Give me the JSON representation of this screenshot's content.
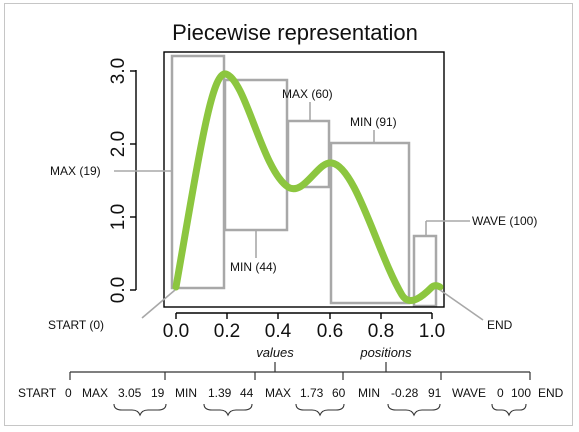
{
  "title": "Piecewise representation",
  "colors": {
    "curve": "#8cc63f",
    "box": "#a8a8a8",
    "axis": "#000000",
    "frame": "#c6c6c6"
  },
  "axes": {
    "x_ticks": [
      "0.0",
      "0.2",
      "0.4",
      "0.6",
      "0.8",
      "1.0"
    ],
    "y_ticks": [
      "0.0",
      "1.0",
      "2.0",
      "3.0"
    ],
    "xlim": [
      0.0,
      1.0
    ],
    "ylim": [
      0.0,
      3.0
    ]
  },
  "annotations": {
    "start": "START (0)",
    "max19": "MAX (19)",
    "min44": "MIN (44)",
    "max60": "MAX (60)",
    "min91": "MIN (91)",
    "wave100": "WAVE (100)",
    "end": "END"
  },
  "captions": {
    "values": "values",
    "positions": "positions"
  },
  "sequence": {
    "start": "START",
    "start_pos": "0",
    "max1": "MAX",
    "max1_val": "3.05",
    "max1_pos": "19",
    "min1": "MIN",
    "min1_val": "1.39",
    "min1_pos": "44",
    "max2": "MAX",
    "max2_val": "1.73",
    "max2_pos": "60",
    "min2": "MIN",
    "min2_val": "-0.28",
    "min2_pos": "91",
    "wave": "WAVE",
    "wave_val": "0",
    "wave_pos": "100",
    "end": "END"
  },
  "chart_data": {
    "type": "line",
    "x": [
      0.0,
      0.19,
      0.44,
      0.6,
      0.91,
      1.0
    ],
    "y": [
      0.0,
      3.05,
      1.39,
      1.73,
      -0.28,
      0.0
    ],
    "xlim": [
      0.0,
      1.0
    ],
    "ylim": [
      0.0,
      3.0
    ]
  }
}
